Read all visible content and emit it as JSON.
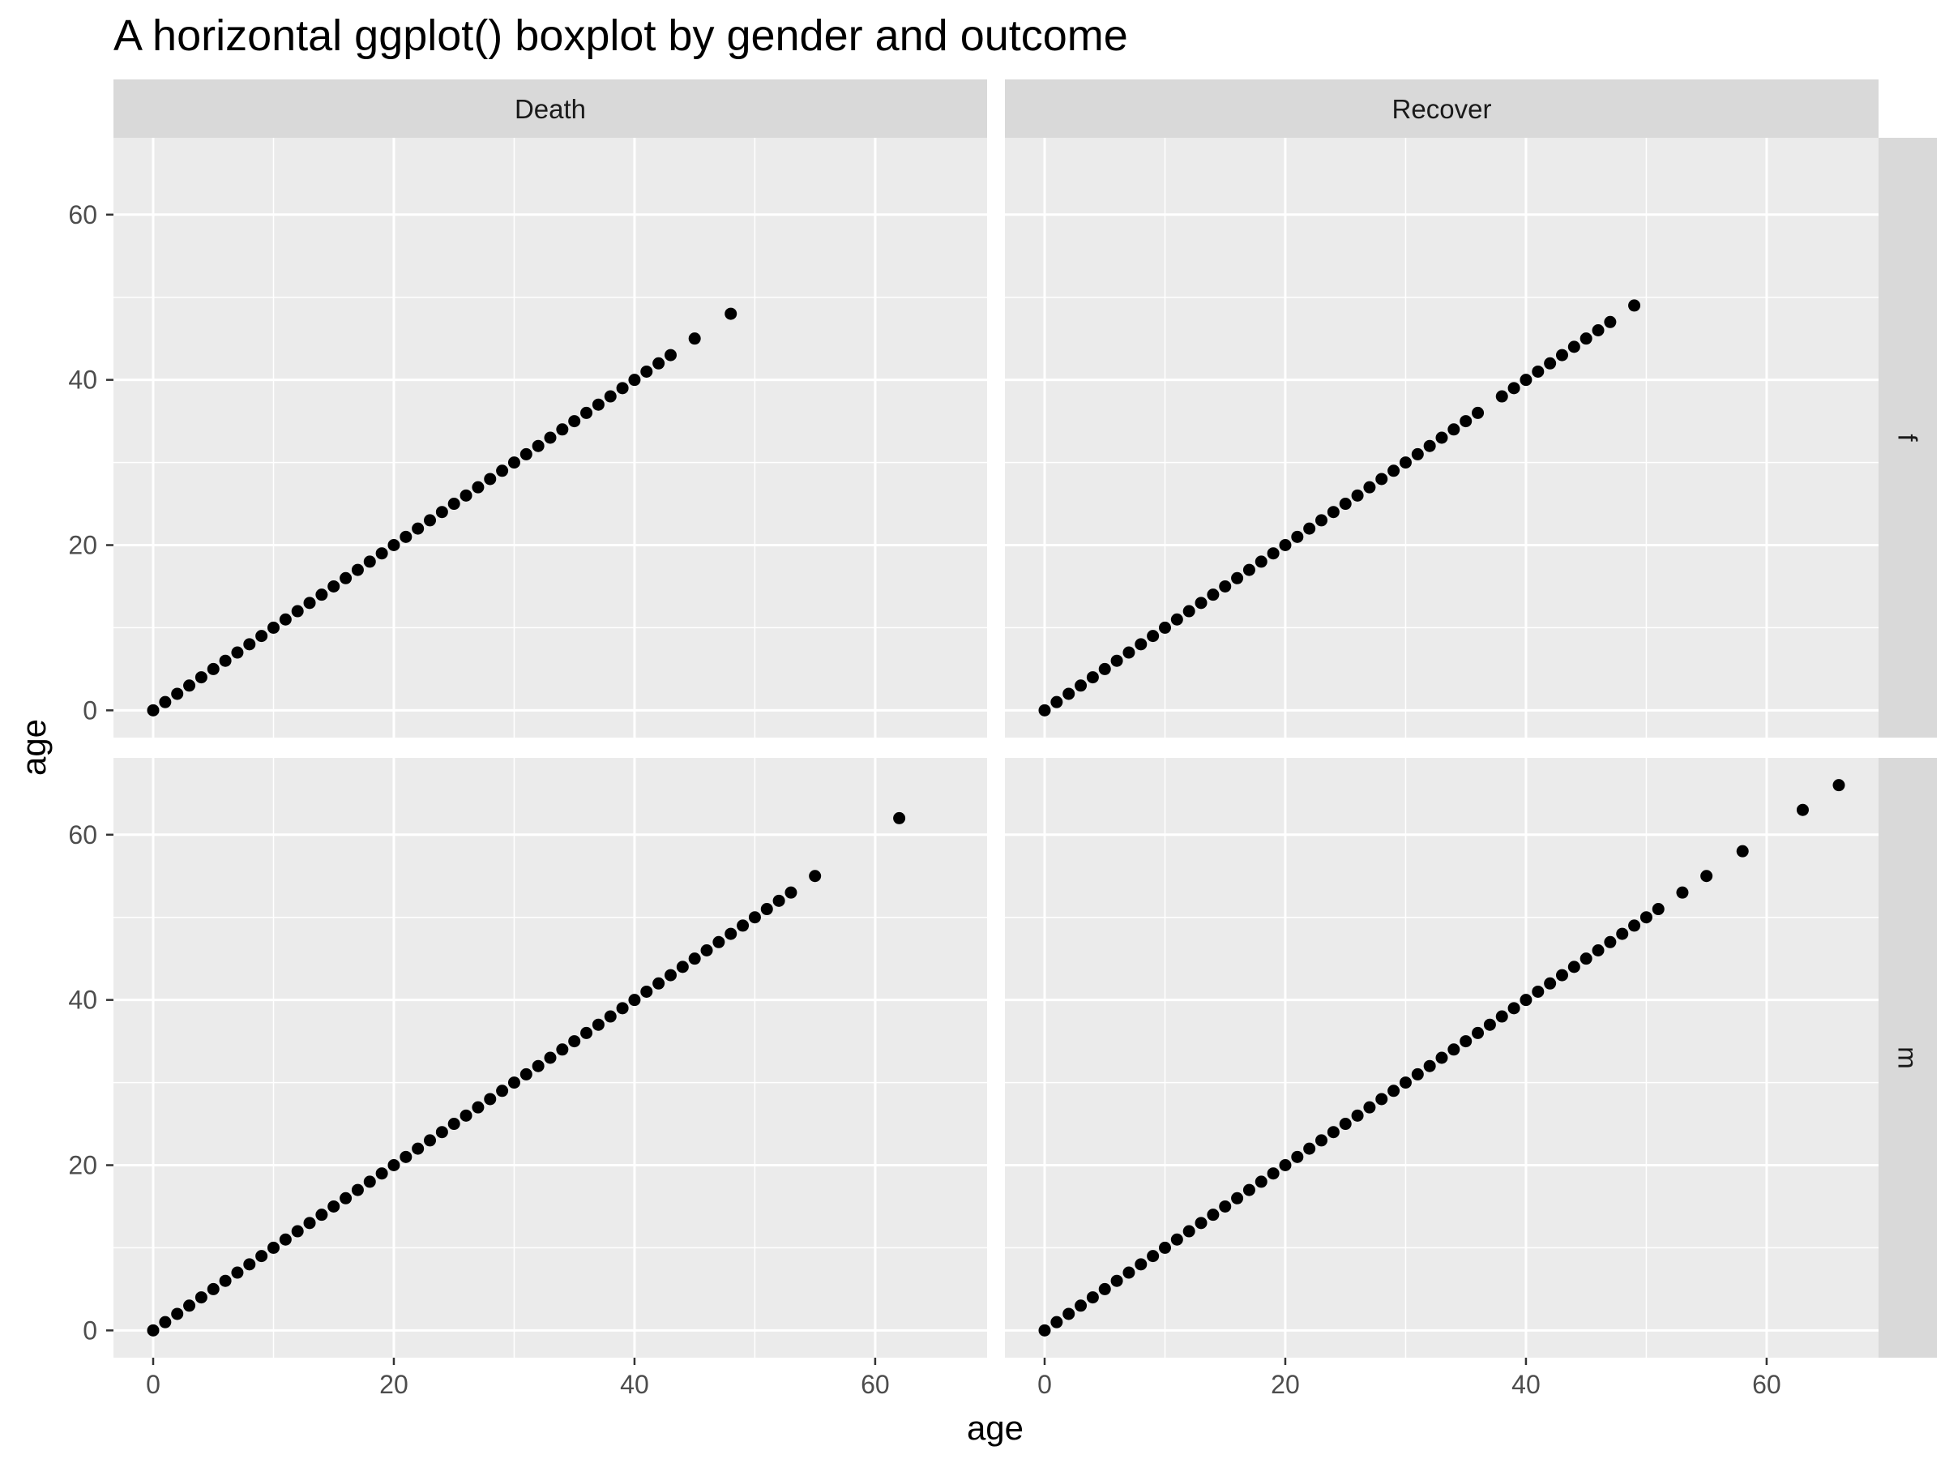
{
  "chart_data": {
    "type": "scatter",
    "title": "A horizontal ggplot() boxplot by gender and outcome",
    "xlabel": "age",
    "ylabel": "age",
    "xlim": [
      -3.3,
      69.3
    ],
    "ylim": [
      -3.3,
      69.3
    ],
    "x_ticks": [
      0,
      20,
      40,
      60
    ],
    "y_ticks": [
      0,
      20,
      40,
      60
    ],
    "grid": true,
    "facet_columns": [
      "Death",
      "Recover"
    ],
    "facet_rows": [
      "f",
      "m"
    ],
    "panels": [
      {
        "col": "Death",
        "row": "f",
        "points": [
          0,
          1,
          2,
          3,
          4,
          5,
          6,
          7,
          8,
          9,
          10,
          11,
          12,
          13,
          14,
          15,
          16,
          17,
          18,
          19,
          20,
          21,
          22,
          23,
          24,
          25,
          26,
          27,
          28,
          29,
          30,
          31,
          32,
          33,
          34,
          35,
          36,
          37,
          38,
          39,
          40,
          41,
          42,
          43,
          45,
          48
        ]
      },
      {
        "col": "Recover",
        "row": "f",
        "points": [
          0,
          1,
          2,
          3,
          4,
          5,
          6,
          7,
          8,
          9,
          10,
          11,
          12,
          13,
          14,
          15,
          16,
          17,
          18,
          19,
          20,
          21,
          22,
          23,
          24,
          25,
          26,
          27,
          28,
          29,
          30,
          31,
          32,
          33,
          34,
          35,
          36,
          38,
          39,
          40,
          41,
          42,
          43,
          44,
          45,
          46,
          47,
          49
        ]
      },
      {
        "col": "Death",
        "row": "m",
        "points": [
          0,
          1,
          2,
          3,
          4,
          5,
          6,
          7,
          8,
          9,
          10,
          11,
          12,
          13,
          14,
          15,
          16,
          17,
          18,
          19,
          20,
          21,
          22,
          23,
          24,
          25,
          26,
          27,
          28,
          29,
          30,
          31,
          32,
          33,
          34,
          35,
          36,
          37,
          38,
          39,
          40,
          41,
          42,
          43,
          44,
          45,
          46,
          47,
          48,
          49,
          50,
          51,
          52,
          53,
          55,
          62
        ]
      },
      {
        "col": "Recover",
        "row": "m",
        "points": [
          0,
          1,
          2,
          3,
          4,
          5,
          6,
          7,
          8,
          9,
          10,
          11,
          12,
          13,
          14,
          15,
          16,
          17,
          18,
          19,
          20,
          21,
          22,
          23,
          24,
          25,
          26,
          27,
          28,
          29,
          30,
          31,
          32,
          33,
          34,
          35,
          36,
          37,
          38,
          39,
          40,
          41,
          42,
          43,
          44,
          45,
          46,
          47,
          48,
          49,
          50,
          51,
          53,
          55,
          58,
          63,
          66
        ]
      }
    ]
  },
  "colors": {
    "panel_background": "#ebebeb",
    "grid_major": "#ffffff",
    "strip_background": "#d9d9d9",
    "point": "#000000",
    "tick": "#333333"
  }
}
